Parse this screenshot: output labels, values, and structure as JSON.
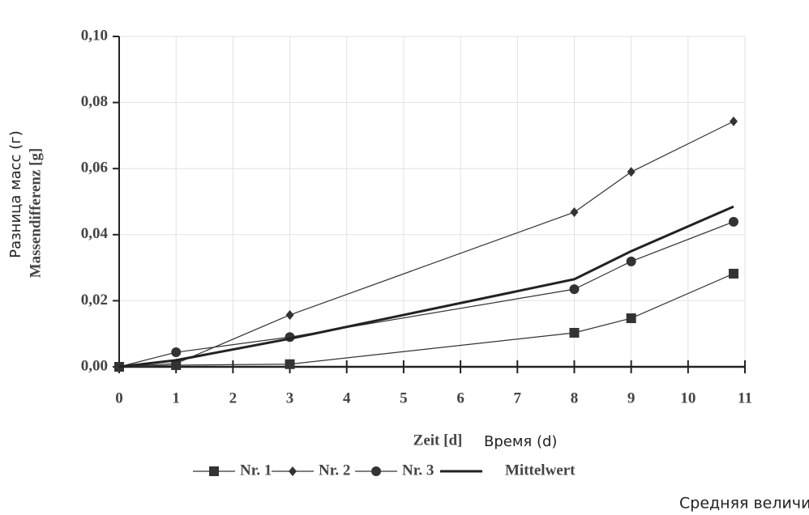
{
  "chart_data": {
    "type": "line",
    "x_label": "Zeit [d]",
    "x_label_translation": "Время (d)",
    "y_label": "Massendifferenz [g]",
    "y_label_translation": "Разница масс (г)",
    "legend_translation": "Средняя величина",
    "x": [
      0,
      1,
      3,
      8,
      9,
      10.8
    ],
    "series": [
      {
        "name": "Nr. 1",
        "color": "#333333",
        "marker": "square",
        "line_width": 1.2,
        "values": [
          0,
          0.0005,
          0.0008,
          0.0103,
          0.0147,
          0.0282
        ]
      },
      {
        "name": "Nr. 2",
        "color": "#333333",
        "marker": "diamond",
        "line_width": 1.2,
        "values": [
          0,
          0.001,
          0.0157,
          0.0468,
          0.059,
          0.0743
        ]
      },
      {
        "name": "Nr. 3",
        "color": "#333333",
        "marker": "circle",
        "line_width": 1.2,
        "values": [
          0,
          0.0044,
          0.009,
          0.0235,
          0.0319,
          0.0439
        ]
      },
      {
        "name": "Mittelwert",
        "color": "#222222",
        "line_width": 3,
        "values": [
          0,
          0.002,
          0.0085,
          0.0265,
          0.035,
          0.0485
        ]
      }
    ],
    "xlim": [
      0,
      11
    ],
    "xticks": [
      0,
      1,
      2,
      3,
      4,
      5,
      6,
      7,
      8,
      9,
      10,
      11
    ],
    "ylim": [
      0,
      0.1
    ],
    "yticks": [
      {
        "value": 0,
        "label": "0,00"
      },
      {
        "value": 0.02,
        "label": "0,02"
      },
      {
        "value": 0.04,
        "label": "0,04"
      },
      {
        "value": 0.06,
        "label": "0,06"
      },
      {
        "value": 0.08,
        "label": "0,08"
      },
      {
        "value": 0.1,
        "label": "0,10"
      }
    ],
    "grid": true
  }
}
